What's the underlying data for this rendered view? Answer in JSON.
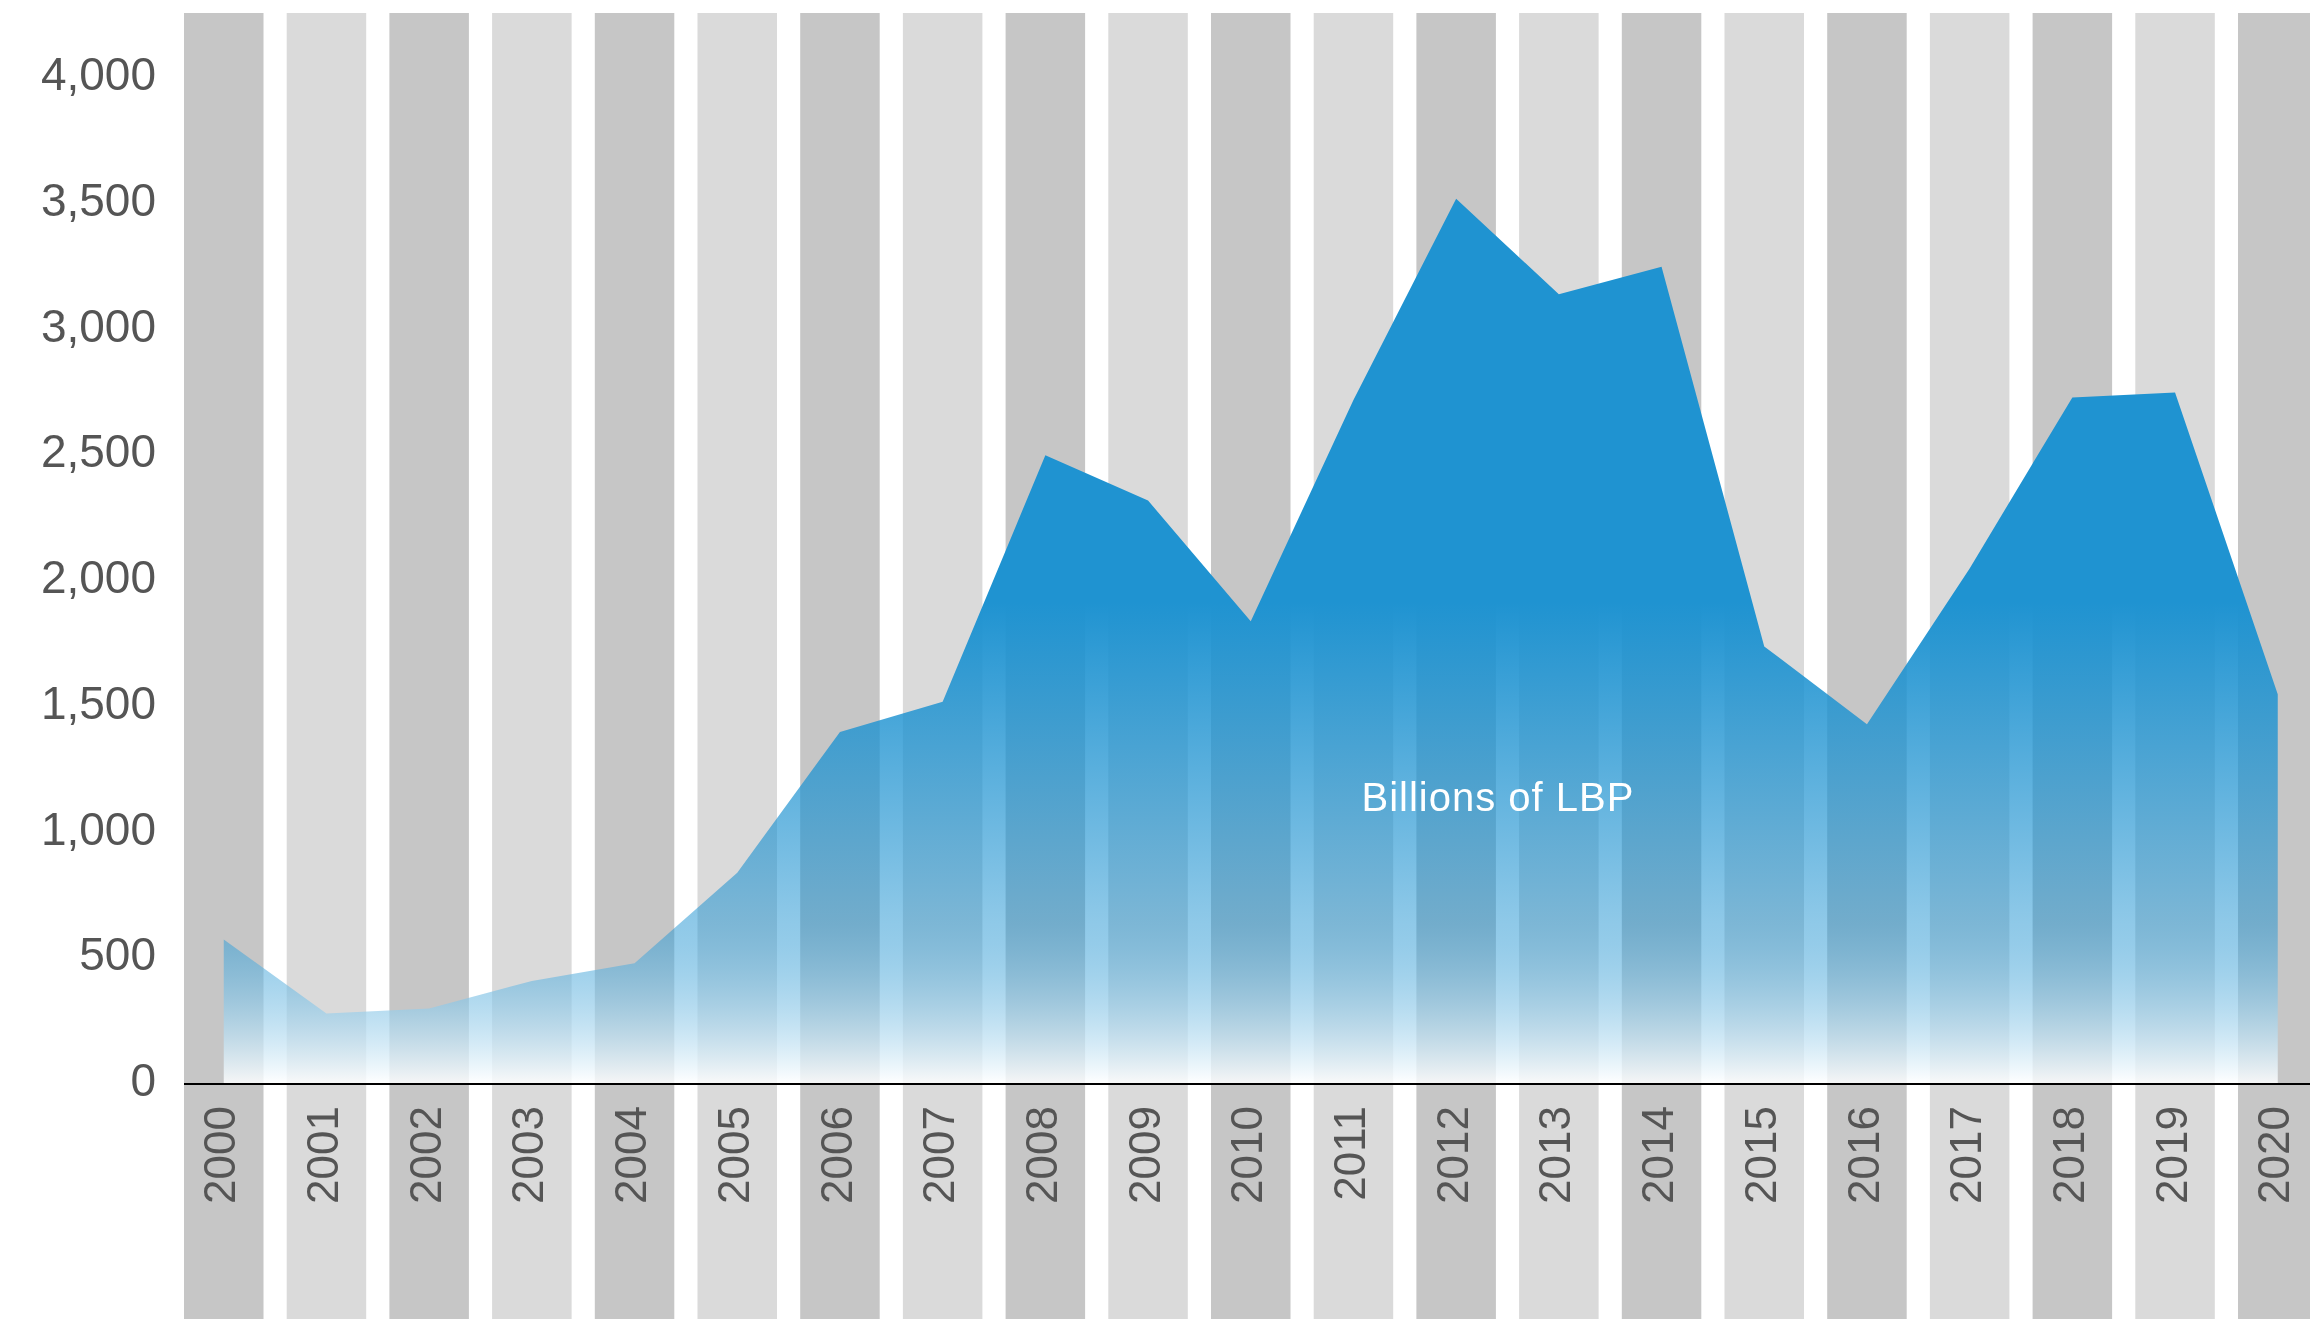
{
  "chart_data": {
    "type": "area",
    "categories": [
      "2000",
      "2001",
      "2002",
      "2003",
      "2004",
      "2005",
      "2006",
      "2007",
      "2008",
      "2009",
      "2010",
      "2011",
      "2012",
      "2013",
      "2014",
      "2015",
      "2016",
      "2017",
      "2018",
      "2019",
      "2020"
    ],
    "series": [
      {
        "color": "#1f93d1",
        "values": [
          575,
          280,
          300,
          410,
          480,
          840,
          1400,
          1520,
          2500,
          2320,
          1840,
          2720,
          3520,
          3140,
          3250,
          1740,
          1430,
          2050,
          2730,
          2750,
          1550
        ]
      }
    ],
    "ylim": [
      0,
      4000
    ],
    "yticks": [
      0,
      {
        "value": 500,
        "label": "500"
      },
      {
        "value": 1000,
        "label": "1,000"
      },
      {
        "value": 1500,
        "label": "1,500"
      },
      {
        "value": 2000,
        "label": "2,000"
      },
      {
        "value": 2500,
        "label": "2,500"
      },
      {
        "value": 3000,
        "label": "3,000"
      },
      {
        "value": 3500,
        "label": "3,500"
      },
      {
        "value": 4000,
        "label": "4,000"
      }
    ],
    "bands": [
      {
        "axis": "x",
        "from": "2000",
        "to": "2000",
        "color": "#c6c6c6"
      },
      {
        "axis": "x",
        "from": "2001",
        "to": "2001",
        "color": "#dadada"
      },
      {
        "axis": "x",
        "from": "2002",
        "to": "2002",
        "color": "#c6c6c6"
      },
      {
        "axis": "x",
        "from": "2003",
        "to": "2003",
        "color": "#dadada"
      },
      {
        "axis": "x",
        "from": "2004",
        "to": "2004",
        "color": "#c6c6c6"
      },
      {
        "axis": "x",
        "from": "2005",
        "to": "2005",
        "color": "#dadada"
      },
      {
        "axis": "x",
        "from": "2006",
        "to": "2006",
        "color": "#c6c6c6"
      },
      {
        "axis": "x",
        "from": "2007",
        "to": "2007",
        "color": "#dadada"
      },
      {
        "axis": "x",
        "from": "2008",
        "to": "2008",
        "color": "#c6c6c6"
      },
      {
        "axis": "x",
        "from": "2009",
        "to": "2009",
        "color": "#dadada"
      },
      {
        "axis": "x",
        "from": "2010",
        "to": "2010",
        "color": "#c6c6c6"
      },
      {
        "axis": "x",
        "from": "2011",
        "to": "2011",
        "color": "#dadada"
      },
      {
        "axis": "x",
        "from": "2012",
        "to": "2012",
        "color": "#c6c6c6"
      },
      {
        "axis": "x",
        "from": "2013",
        "to": "2013",
        "color": "#dadada"
      },
      {
        "axis": "x",
        "from": "2014",
        "to": "2014",
        "color": "#c6c6c6"
      },
      {
        "axis": "x",
        "from": "2015",
        "to": "2015",
        "color": "#dadada"
      },
      {
        "axis": "x",
        "from": "2016",
        "to": "2016",
        "color": "#c6c6c6"
      },
      {
        "axis": "x",
        "from": "2017",
        "to": "2017",
        "color": "#dadada"
      },
      {
        "axis": "x",
        "from": "2018",
        "to": "2018",
        "color": "#c6c6c6"
      },
      {
        "axis": "x",
        "from": "2019",
        "to": "2019",
        "color": "#dadada"
      },
      {
        "axis": "x",
        "from": "2020",
        "to": "2020",
        "color": "#c6c6c6"
      }
    ],
    "annotations": [
      "Billions of LBP"
    ],
    "grid": false
  }
}
